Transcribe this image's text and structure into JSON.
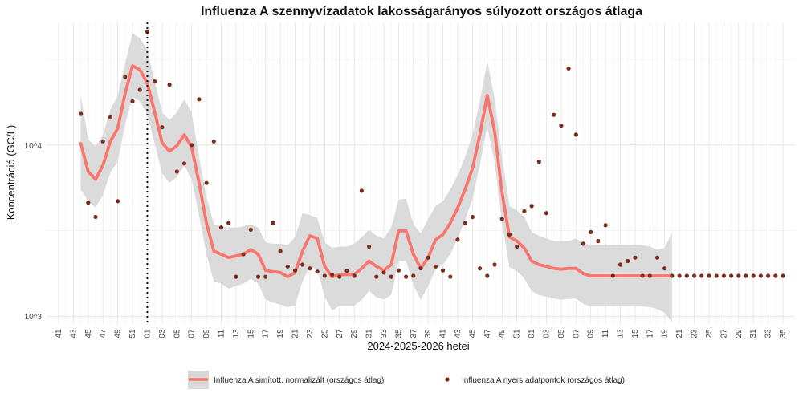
{
  "chart_data": {
    "type": "line",
    "title": "Influenza A szennyvízadatok lakosságarányos súlyozott országos átlaga",
    "xlabel": "2024-2025-2026 hetei",
    "ylabel": "Koncentráció (GC/L)",
    "y_scale": "log10",
    "ylim": [
      900,
      52000
    ],
    "yticks": [
      {
        "value": 1000,
        "label": "10^3"
      },
      {
        "value": 10000,
        "label": "10^4"
      }
    ],
    "x_categories": [
      "41",
      "42",
      "43",
      "44",
      "45",
      "46",
      "47",
      "48",
      "49",
      "50",
      "51",
      "52",
      "01",
      "02",
      "03",
      "04",
      "05",
      "06",
      "07",
      "08",
      "09",
      "10",
      "11",
      "12",
      "13",
      "14",
      "15",
      "16",
      "17",
      "18",
      "19",
      "20",
      "21",
      "22",
      "23",
      "24",
      "25",
      "26",
      "27",
      "28",
      "29",
      "30",
      "31",
      "32",
      "33",
      "34",
      "35",
      "36",
      "37",
      "38",
      "39",
      "40",
      "41",
      "42",
      "43",
      "44",
      "45",
      "46",
      "47",
      "48",
      "49",
      "50",
      "51",
      "52",
      "01",
      "02",
      "03",
      "04",
      "05",
      "06",
      "07",
      "08",
      "09",
      "10",
      "11",
      "12",
      "13",
      "14",
      "15",
      "16",
      "17",
      "18",
      "19",
      "20",
      "21",
      "22",
      "23",
      "24",
      "25",
      "26",
      "27",
      "28",
      "29",
      "30",
      "31",
      "32",
      "33",
      "34",
      "35"
    ],
    "x_tick_labels": [
      "41",
      "43",
      "45",
      "47",
      "49",
      "51",
      "01",
      "03",
      "05",
      "07",
      "09",
      "11",
      "13",
      "15",
      "17",
      "19",
      "21",
      "23",
      "25",
      "27",
      "29",
      "31",
      "33",
      "35",
      "37",
      "39",
      "41",
      "43",
      "45",
      "47",
      "49",
      "51",
      "01",
      "03",
      "05",
      "07",
      "09",
      "11",
      "13",
      "15",
      "17",
      "19",
      "21",
      "23",
      "25",
      "27",
      "29",
      "31",
      "33",
      "35"
    ],
    "vline": {
      "index": 12,
      "style": "dotted"
    },
    "x_start_index": 3,
    "grid": true,
    "legend_position": "bottom",
    "series": [
      {
        "name": "Influenza A simított, normalizált (országos átlag)",
        "kind": "line_with_band",
        "color": "#f8766d",
        "band_color": "#d9d9d9",
        "values": [
          10200,
          7000,
          6300,
          7600,
          10500,
          12500,
          20000,
          29000,
          27500,
          23000,
          15500,
          10300,
          9200,
          9900,
          11500,
          9700,
          6000,
          3500,
          2400,
          2300,
          2200,
          2250,
          2300,
          2450,
          2300,
          1850,
          1820,
          1800,
          1700,
          1800,
          2400,
          2950,
          2850,
          1950,
          1700,
          1750,
          1750,
          1750,
          1900,
          2100,
          1950,
          1850,
          2000,
          3150,
          3150,
          2300,
          1900,
          2200,
          2800,
          3000,
          3500,
          4300,
          5500,
          7300,
          11500,
          19500,
          12000,
          5300,
          2900,
          2750,
          2500,
          2100,
          2000,
          1950,
          1900,
          1880,
          1900,
          1900,
          1770,
          1720,
          1720,
          1720,
          1720,
          1720,
          1720,
          1720,
          1720,
          1720,
          1720,
          1720,
          1720
        ],
        "upper": [
          19500,
          10800,
          9800,
          11500,
          16000,
          19500,
          30000,
          45000,
          42000,
          36000,
          23500,
          15500,
          14000,
          15500,
          18500,
          15500,
          8500,
          5000,
          3450,
          3350,
          3300,
          3300,
          3350,
          3450,
          3300,
          2700,
          2650,
          2650,
          2600,
          2900,
          4000,
          3900,
          3750,
          2700,
          2500,
          2550,
          2550,
          2650,
          2900,
          3200,
          2950,
          2850,
          3300,
          4800,
          4850,
          3450,
          3050,
          3700,
          4400,
          4700,
          5500,
          6700,
          8500,
          11500,
          18000,
          31000,
          18500,
          8500,
          4400,
          4150,
          3800,
          3100,
          2950,
          2850,
          2750,
          2750,
          2750,
          2850,
          2650,
          2600,
          2600,
          2600,
          2600,
          2600,
          2600,
          2600,
          2600,
          2550,
          2450,
          2500,
          3100
        ],
        "lower": [
          5500,
          4700,
          4300,
          5100,
          6900,
          8000,
          13200,
          19000,
          18000,
          15000,
          10200,
          6800,
          6000,
          6500,
          7600,
          6300,
          3900,
          2300,
          1600,
          1550,
          1450,
          1500,
          1550,
          1650,
          1550,
          1250,
          1200,
          1170,
          1130,
          1160,
          1600,
          1950,
          1880,
          1300,
          1080,
          1150,
          1150,
          1150,
          1250,
          1400,
          1290,
          1250,
          1330,
          2100,
          2100,
          1520,
          1250,
          1500,
          1870,
          2000,
          2300,
          2850,
          3650,
          4850,
          7650,
          12800,
          7900,
          3500,
          1930,
          1830,
          1660,
          1400,
          1330,
          1300,
          1270,
          1250,
          1260,
          1270,
          1180,
          1140,
          1140,
          1140,
          1140,
          1140,
          1140,
          1140,
          1140,
          1130,
          1100,
          1050,
          920
        ]
      },
      {
        "name": "Influenza A nyers adatpontok (országos átlag)",
        "kind": "points",
        "color": "#7b2c1e",
        "values": [
          15200,
          4600,
          3800,
          10500,
          14500,
          4700,
          25000,
          18000,
          21000,
          46000,
          23500,
          12700,
          22500,
          7000,
          7800,
          10000,
          18500,
          6000,
          10500,
          3300,
          3500,
          1700,
          2300,
          3200,
          1700,
          1700,
          3500,
          2400,
          1950,
          1850,
          2000,
          1900,
          1820,
          1720,
          1750,
          1700,
          1840,
          1720,
          5400,
          2550,
          1700,
          1800,
          1700,
          1850,
          1700,
          1720,
          1900,
          2200,
          1950,
          1850,
          1700,
          2800,
          3500,
          3800,
          1900,
          1720,
          2000,
          3700,
          3000,
          2550,
          4100,
          4400,
          8000,
          4000,
          15000,
          13000,
          28000,
          11500,
          2650,
          3100,
          2750,
          3400,
          1720,
          2000,
          2100,
          2200,
          1720,
          1720,
          2200,
          1900,
          1720,
          1720,
          1720,
          1720,
          1720,
          1720,
          1720,
          1720,
          1720,
          1720,
          1720,
          1720,
          1720,
          1720,
          1720,
          1720
        ]
      }
    ]
  }
}
